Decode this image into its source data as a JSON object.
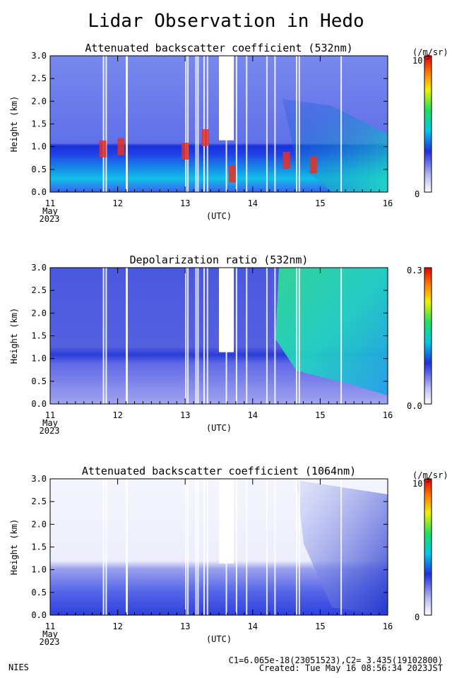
{
  "title": "Lidar Observation in Hedo",
  "footer": {
    "org": "NIES",
    "calib": "C1=6.065e-18(23051523),C2= 3.435(19102800)",
    "created": "Created: Tue May 16 08:56:34 2023JST"
  },
  "axes_common": {
    "xlabel": "(UTC)",
    "ylabel": "Height (km)",
    "month": "May",
    "year": "2023",
    "xticks": [
      "11",
      "12",
      "13",
      "14",
      "15",
      "16"
    ],
    "yticks": [
      "0.0",
      "0.5",
      "1.0",
      "1.5",
      "2.0",
      "2.5",
      "3.0"
    ]
  },
  "chart_data": [
    {
      "type": "heatmap",
      "title": "Attenuated backscatter coefficient (532nm)",
      "xlim": [
        11,
        16
      ],
      "ylim": [
        0,
        3
      ],
      "colorbar": {
        "unit": "(/m/sr)",
        "top": "10",
        "top_exp": "-5",
        "bottom": "0"
      },
      "features": {
        "boundary_layer_top_km": 1.0,
        "clouds": [
          {
            "t": 11.78,
            "h": 0.95
          },
          {
            "t": 12.05,
            "h": 1.0
          },
          {
            "t": 13.0,
            "h": 0.9
          },
          {
            "t": 13.3,
            "h": 1.2
          },
          {
            "t": 13.7,
            "h": 0.4
          },
          {
            "t": 14.5,
            "h": 0.7
          },
          {
            "t": 14.9,
            "h": 0.6
          }
        ]
      }
    },
    {
      "type": "heatmap",
      "title": "Depolarization ratio (532nm)",
      "xlim": [
        11,
        16
      ],
      "ylim": [
        0,
        3
      ],
      "colorbar": {
        "unit": "",
        "top": "0.3",
        "top_exp": "",
        "bottom": "0.0"
      },
      "features": {
        "dust_layer": "high depolarization above 1 km after day 14.5"
      }
    },
    {
      "type": "heatmap",
      "title": "Attenuated backscatter coefficient (1064nm)",
      "xlim": [
        11,
        16
      ],
      "ylim": [
        0,
        3
      ],
      "colorbar": {
        "unit": "(/m/sr)",
        "top": "10",
        "top_exp": "-5",
        "bottom": "0"
      },
      "features": {
        "boundary_layer_top_km": 1.0
      }
    }
  ]
}
